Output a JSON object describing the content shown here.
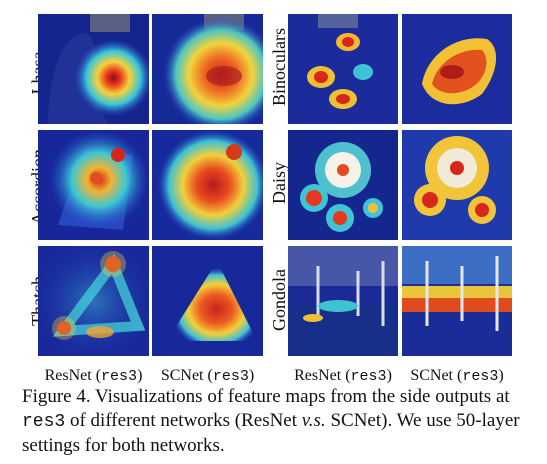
{
  "left_group": {
    "rows": [
      {
        "label": "Lhasa"
      },
      {
        "label": "Accordion"
      },
      {
        "label": "Thatch"
      }
    ]
  },
  "right_group": {
    "rows": [
      {
        "label": "Binoculars"
      },
      {
        "label": "Daisy"
      },
      {
        "label": "Gondola"
      }
    ]
  },
  "column_captions": [
    {
      "name": "ResNet",
      "layer": "res3"
    },
    {
      "name": "SCNet",
      "layer": "res3"
    },
    {
      "name": "ResNet",
      "layer": "res3"
    },
    {
      "name": "SCNet",
      "layer": "res3"
    }
  ],
  "caption": {
    "part1": "Figure 4. Visualizations of feature maps from the side outputs at ",
    "code1": "res3",
    "part2": " of different networks (ResNet ",
    "vs": "v.s.",
    "part3": " SCNet). We use 50-layer settings for both networks."
  },
  "colors": {
    "background_cold": "#1a2fa8",
    "activation_hot": "#d8261b",
    "activation_warm": "#f3d13a"
  }
}
